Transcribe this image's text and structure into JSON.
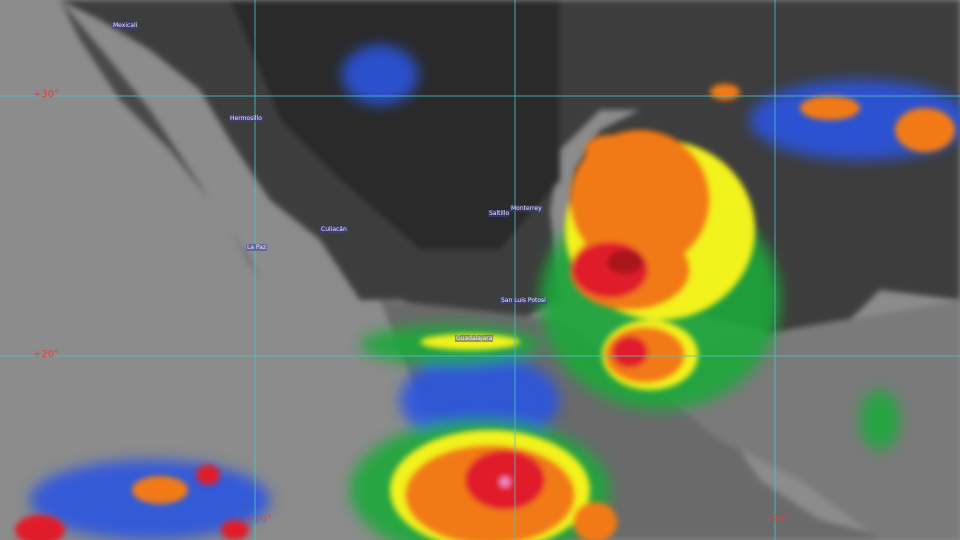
{
  "map": {
    "type": "infrared satellite image",
    "colors": {
      "ocean": "#8c8c8c",
      "land": "#3a3a3a",
      "cold_top_blue": "#2b54e0",
      "green": "#1fa83a",
      "yellow": "#f2f21e",
      "orange": "#f27a14",
      "red": "#e01e2a",
      "dark_red": "#a8141e",
      "grid": "#4fc4c8",
      "grid_label": "#e0403a"
    },
    "grid_labels": {
      "lat_30": "+30°",
      "lat_20": "+20°",
      "lon_110": "-110°",
      "lon_90": "-90°"
    },
    "cities": [
      "Mexicali",
      "Hermosillo",
      "La Paz",
      "Culiacán",
      "Saltillo",
      "Monterrey",
      "San Luis Potosí",
      "Guadalajara"
    ]
  }
}
